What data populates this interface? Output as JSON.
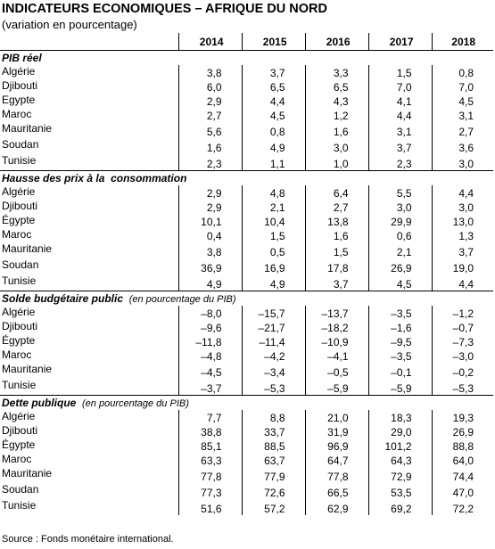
{
  "title": "INDICATEURS ECONOMIQUES – AFRIQUE DU NORD",
  "subtitle": "(variation en pourcentage)",
  "table": {
    "columns": [
      "2014",
      "2015",
      "2016",
      "2017",
      "2018"
    ],
    "sections": [
      {
        "title": "PIB réel",
        "rows": [
          {
            "label": "Algérie",
            "values": [
              "3,8",
              "3,7",
              "3,3",
              "1,5",
              "0,8"
            ]
          },
          {
            "label": "Djibouti",
            "values": [
              "6,0",
              "6,5",
              "6,5",
              "7,0",
              "7,0"
            ]
          },
          {
            "label": "Egypte",
            "values": [
              "2,9",
              "4,4",
              "4,3",
              "4,1",
              "4,5"
            ]
          },
          {
            "label": "Maroc",
            "values": [
              "2,7",
              "4,5",
              "1,2",
              "4,4",
              "3,1"
            ]
          },
          {
            "label": "Mauritanie",
            "values": [
              "5,6",
              "0,8",
              "1,6",
              "3,1",
              "2,7"
            ]
          },
          {
            "label": "Soudan",
            "values": [
              "1,6",
              "4,9",
              "3,0",
              "3,7",
              "3,6"
            ]
          },
          {
            "label": "Tunisie",
            "values": [
              "2,3",
              "1,1",
              "1,0",
              "2,3",
              "3,0"
            ]
          }
        ]
      },
      {
        "title": "Hausse des prix à la  consommation",
        "rows": [
          {
            "label": "Algérie",
            "values": [
              "2,9",
              "4,8",
              "6,4",
              "5,5",
              "4,4"
            ]
          },
          {
            "label": "Djibouti",
            "values": [
              "2,9",
              "2,1",
              "2,7",
              "3,0",
              "3,0"
            ]
          },
          {
            "label": "Égypte",
            "values": [
              "10,1",
              "10,4",
              "13,8",
              "29,9",
              "13,0"
            ]
          },
          {
            "label": "Maroc",
            "values": [
              "0,4",
              "1,5",
              "1,6",
              "0,6",
              "1,3"
            ]
          },
          {
            "label": "Mauritanie",
            "values": [
              "3,8",
              "0,5",
              "1,5",
              "2,1",
              "3,7"
            ]
          },
          {
            "label": "Soudan",
            "values": [
              "36,9",
              "16,9",
              "17,8",
              "26,9",
              "19,0"
            ]
          },
          {
            "label": "Tunisie",
            "values": [
              "4,9",
              "4,9",
              "3,7",
              "4,5",
              "4,4"
            ]
          }
        ]
      },
      {
        "title": "Solde budgétaire public",
        "note": "(en pourcentage du PIB)",
        "rows": [
          {
            "label": "Algérie",
            "values": [
              "–8,0",
              "–15,7",
              "–13,7",
              "–3,5",
              "–1,2"
            ]
          },
          {
            "label": "Djibouti",
            "values": [
              "–9,6",
              "–21,7",
              "–18,2",
              "–1,6",
              "–0,7"
            ]
          },
          {
            "label": "Égypte",
            "values": [
              "–11,8",
              "–11,4",
              "–10,9",
              "–9,5",
              "–7,3"
            ]
          },
          {
            "label": "Maroc",
            "values": [
              "–4,8",
              "–4,2",
              "–4,1",
              "–3,5",
              "–3,0"
            ]
          },
          {
            "label": "Mauritanie",
            "values": [
              "–4,5",
              "–3,4",
              "–0,5",
              "–0,1",
              "–0,2"
            ]
          },
          {
            "label": "Tunisie",
            "values": [
              "–3,7",
              "–5,3",
              "–5,9",
              "–5,9",
              "–5,3"
            ]
          }
        ]
      },
      {
        "title": "Dette publique",
        "note": "(en pourcentage du PIB)",
        "rows": [
          {
            "label": "Algérie",
            "values": [
              "7,7",
              "8,8",
              "21,0",
              "18,3",
              "19,3"
            ]
          },
          {
            "label": "Djibouti",
            "values": [
              "38,8",
              "33,7",
              "31,9",
              "29,0",
              "26,9"
            ]
          },
          {
            "label": "Égypte",
            "values": [
              "85,1",
              "88,5",
              "96,9",
              "101,2",
              "88,8"
            ]
          },
          {
            "label": "Maroc",
            "values": [
              "63,3",
              "63,7",
              "64,7",
              "64,3",
              "64,0"
            ]
          },
          {
            "label": "Mauritanie",
            "values": [
              "77,8",
              "77,9",
              "77,8",
              "72,9",
              "74,4"
            ]
          },
          {
            "label": "Soudan",
            "values": [
              "77,3",
              "72,6",
              "66,5",
              "53,5",
              "47,0"
            ]
          },
          {
            "label": "Tunisie",
            "values": [
              "51,6",
              "57,2",
              "62,9",
              "69,2",
              "72,2"
            ]
          }
        ]
      }
    ]
  },
  "source": "Source : Fonds monétaire international."
}
